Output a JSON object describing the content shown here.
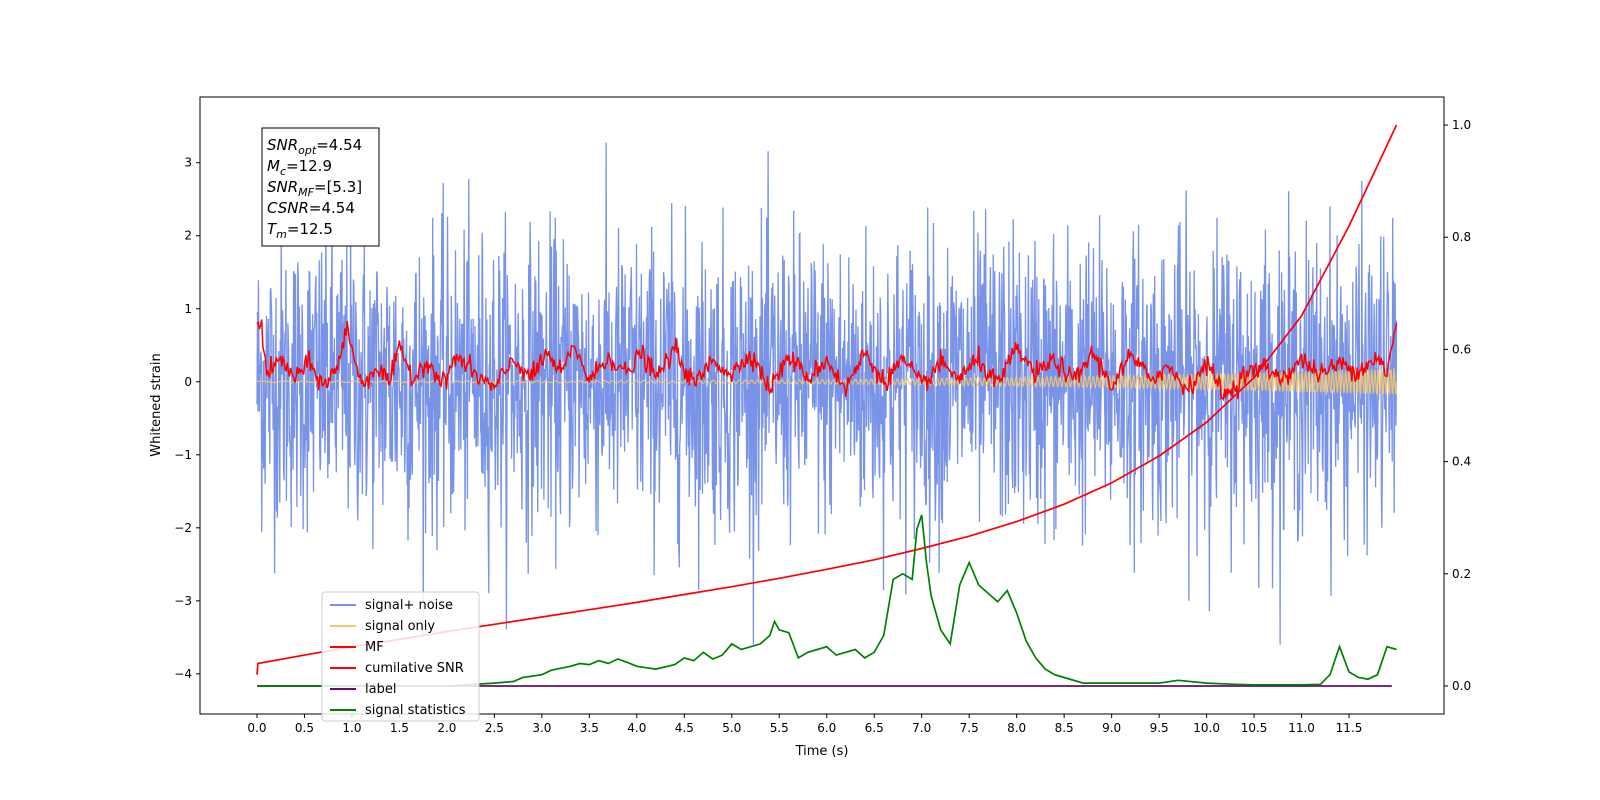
{
  "chart_data": {
    "type": "line",
    "title": "",
    "xlabel": "Time (s)",
    "ylabel": "Whitened strain",
    "xlim": [
      -0.6,
      12.5
    ],
    "ylim": [
      -4.55,
      3.9
    ],
    "y2lim": [
      -0.05,
      1.05
    ],
    "grid": false,
    "legend_position": "bottom-left",
    "x_ticks": [
      "0.0",
      "0.5",
      "1.0",
      "1.5",
      "2.0",
      "2.5",
      "3.0",
      "3.5",
      "4.0",
      "4.5",
      "5.0",
      "5.5",
      "6.0",
      "6.5",
      "7.0",
      "7.5",
      "8.0",
      "8.5",
      "9.0",
      "9.5",
      "10.0",
      "10.5",
      "11.0",
      "11.5"
    ],
    "y_ticks": [
      "3",
      "2",
      "1",
      "0",
      "−1",
      "−2",
      "−3",
      "−4"
    ],
    "y2_ticks": [
      "1.0",
      "0.8",
      "0.6",
      "0.4",
      "0.2",
      "0.0"
    ],
    "annotation": [
      {
        "sym": "SNR",
        "sub": "opt",
        "value": "=4.54"
      },
      {
        "sym": "M",
        "sub": "c",
        "value": "=12.9"
      },
      {
        "sym": "SNR",
        "sub": "MF",
        "value": "=[5.3]"
      },
      {
        "sym": "CSNR",
        "sub": "",
        "value": "=4.54"
      },
      {
        "sym": "T",
        "sub": "m",
        "value": "=12.5"
      }
    ],
    "colors": {
      "noise": "#7893e8",
      "signal": "#f5c86a",
      "mf": "#ff0000",
      "csnr": "#ff0000",
      "label": "#6a0a6a",
      "stats": "#008000"
    },
    "series": [
      {
        "name": "signal+ noise",
        "key": "noise",
        "axis": "left",
        "x_range": [
          0,
          12.0
        ],
        "amplitude": 1.0,
        "peak_max": 3.55,
        "peak_min": -3.6,
        "samples": 2400
      },
      {
        "name": "signal only",
        "key": "signal",
        "axis": "left",
        "x_range": [
          0,
          12.0
        ],
        "amp_start": 0.01,
        "amp_end": 0.18,
        "f_start": 8,
        "f_end": 60,
        "samples": 2400
      },
      {
        "name": "MF",
        "key": "mf",
        "axis": "left",
        "x": [
          0.0,
          0.05,
          0.1,
          0.25,
          0.4,
          0.55,
          0.7,
          0.85,
          0.95,
          1.1,
          1.25,
          1.4,
          1.5,
          1.65,
          1.8,
          1.95,
          2.1,
          2.3,
          2.5,
          2.7,
          2.9,
          3.05,
          3.2,
          3.35,
          3.5,
          3.7,
          3.9,
          4.05,
          4.2,
          4.4,
          4.6,
          4.8,
          5.0,
          5.2,
          5.4,
          5.6,
          5.8,
          6.0,
          6.2,
          6.4,
          6.6,
          6.8,
          7.0,
          7.2,
          7.4,
          7.6,
          7.8,
          8.0,
          8.2,
          8.4,
          8.6,
          8.8,
          9.0,
          9.2,
          9.4,
          9.6,
          9.8,
          10.0,
          10.2,
          10.4,
          10.6,
          10.8,
          11.0,
          11.2,
          11.4,
          11.6,
          11.8,
          11.9,
          12.0
        ],
        "y": [
          0.9,
          0.75,
          0.1,
          0.3,
          0.05,
          0.25,
          -0.05,
          0.2,
          0.75,
          -0.05,
          0.2,
          0.0,
          0.45,
          0.05,
          0.3,
          -0.05,
          0.35,
          0.1,
          -0.1,
          0.3,
          0.05,
          0.4,
          0.1,
          0.5,
          0.0,
          0.35,
          0.1,
          0.4,
          0.05,
          0.45,
          -0.05,
          0.3,
          0.1,
          0.4,
          -0.1,
          0.35,
          0.05,
          0.3,
          -0.1,
          0.4,
          0.0,
          0.3,
          -0.05,
          0.25,
          0.05,
          0.3,
          -0.05,
          0.45,
          0.1,
          0.3,
          0.0,
          0.4,
          -0.05,
          0.35,
          0.05,
          0.2,
          -0.1,
          0.25,
          -0.2,
          0.1,
          0.2,
          0.05,
          0.3,
          0.1,
          0.25,
          0.15,
          0.35,
          0.1,
          0.8
        ]
      },
      {
        "name": "cumilative SNR",
        "key": "csnr",
        "axis": "right",
        "x": [
          0.0,
          0.01,
          0.5,
          1.0,
          1.5,
          2.0,
          2.5,
          3.0,
          3.5,
          4.0,
          4.5,
          5.0,
          5.5,
          6.0,
          6.5,
          7.0,
          7.5,
          8.0,
          8.5,
          9.0,
          9.5,
          10.0,
          10.5,
          11.0,
          11.25,
          11.5,
          11.75,
          12.0
        ],
        "y": [
          0.02,
          0.04,
          0.055,
          0.07,
          0.083,
          0.097,
          0.11,
          0.123,
          0.136,
          0.149,
          0.163,
          0.177,
          0.192,
          0.208,
          0.225,
          0.245,
          0.267,
          0.293,
          0.324,
          0.362,
          0.41,
          0.47,
          0.55,
          0.66,
          0.74,
          0.82,
          0.91,
          1.0
        ]
      },
      {
        "name": "label",
        "key": "label",
        "axis": "right",
        "x": [
          0.0,
          11.95
        ],
        "y": [
          0.0,
          0.0
        ]
      },
      {
        "name": "signal statistics",
        "key": "stats",
        "axis": "right",
        "x": [
          0.0,
          0.5,
          1.0,
          1.5,
          2.0,
          2.5,
          2.7,
          2.8,
          3.0,
          3.1,
          3.3,
          3.4,
          3.5,
          3.6,
          3.7,
          3.8,
          3.9,
          4.0,
          4.2,
          4.4,
          4.5,
          4.6,
          4.7,
          4.8,
          4.9,
          5.0,
          5.1,
          5.2,
          5.3,
          5.4,
          5.45,
          5.5,
          5.6,
          5.7,
          5.8,
          5.9,
          6.0,
          6.1,
          6.2,
          6.3,
          6.4,
          6.5,
          6.6,
          6.7,
          6.8,
          6.9,
          6.95,
          7.0,
          7.05,
          7.1,
          7.2,
          7.3,
          7.4,
          7.5,
          7.6,
          7.7,
          7.8,
          7.9,
          8.0,
          8.1,
          8.2,
          8.3,
          8.4,
          8.5,
          8.7,
          9.0,
          9.5,
          9.7,
          10.0,
          10.3,
          10.5,
          11.0,
          11.2,
          11.3,
          11.4,
          11.5,
          11.6,
          11.7,
          11.8,
          11.9,
          12.0
        ],
        "y": [
          0.0,
          0.0,
          0.0,
          0.0,
          0.0,
          0.005,
          0.008,
          0.015,
          0.02,
          0.028,
          0.035,
          0.04,
          0.038,
          0.045,
          0.04,
          0.048,
          0.042,
          0.035,
          0.03,
          0.038,
          0.05,
          0.045,
          0.06,
          0.048,
          0.055,
          0.075,
          0.065,
          0.07,
          0.075,
          0.09,
          0.115,
          0.1,
          0.095,
          0.05,
          0.06,
          0.065,
          0.07,
          0.055,
          0.06,
          0.065,
          0.05,
          0.06,
          0.09,
          0.19,
          0.2,
          0.19,
          0.28,
          0.305,
          0.22,
          0.16,
          0.1,
          0.075,
          0.18,
          0.22,
          0.18,
          0.165,
          0.15,
          0.17,
          0.13,
          0.08,
          0.05,
          0.03,
          0.02,
          0.015,
          0.005,
          0.005,
          0.005,
          0.01,
          0.005,
          0.003,
          0.002,
          0.002,
          0.003,
          0.02,
          0.07,
          0.025,
          0.015,
          0.012,
          0.02,
          0.07,
          0.065
        ]
      }
    ]
  }
}
